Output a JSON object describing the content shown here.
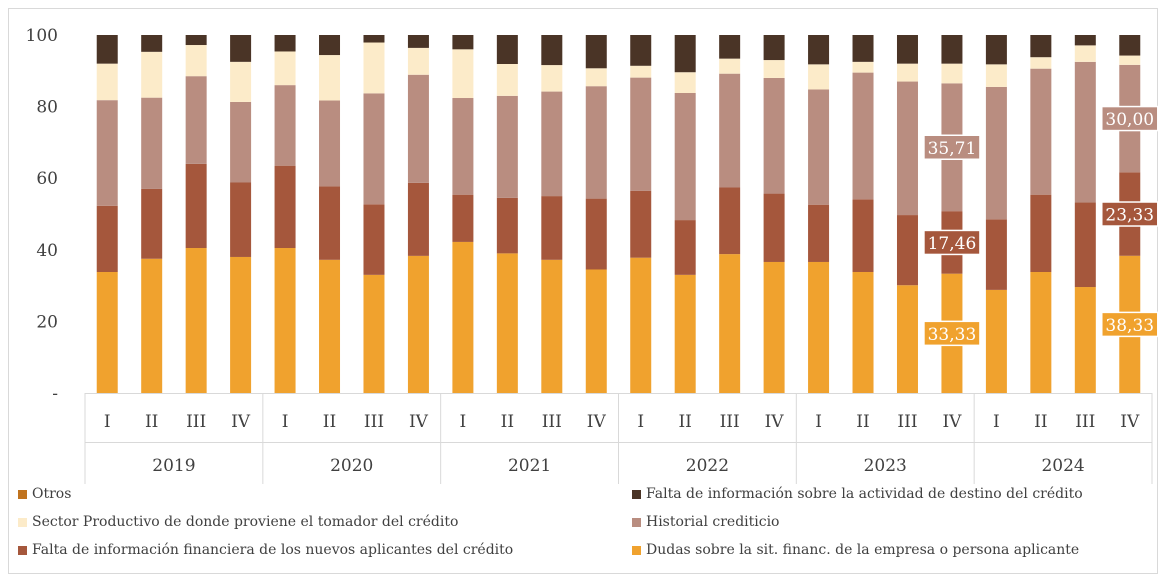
{
  "chart_data": {
    "type": "bar",
    "stacked": true,
    "ylim": [
      0,
      100
    ],
    "y_ticks": [
      "-",
      "20",
      "40",
      "60",
      "80",
      "100"
    ],
    "quarters": [
      "I",
      "II",
      "III",
      "IV",
      "I",
      "II",
      "III",
      "IV",
      "I",
      "II",
      "III",
      "IV",
      "I",
      "II",
      "III",
      "IV",
      "I",
      "II",
      "III",
      "IV",
      "I",
      "II",
      "III",
      "IV"
    ],
    "years": [
      "2019",
      "2020",
      "2021",
      "2022",
      "2023",
      "2024"
    ],
    "series": [
      {
        "name": "Dudas sobre la sit. financ. de la empresa o persona aplicante",
        "color": "#f0a22e",
        "values": [
          33.8,
          37.5,
          40.5,
          38.0,
          40.5,
          37.2,
          33.0,
          38.3,
          42.2,
          39.0,
          37.2,
          34.5,
          37.8,
          33.0,
          38.8,
          36.6,
          36.6,
          33.8,
          30.1,
          33.33,
          28.8,
          33.8,
          29.6,
          38.33
        ]
      },
      {
        "name": "Falta de información financiera de los nuevos aplicantes del crédito",
        "color": "#a5573c",
        "values": [
          18.5,
          19.5,
          23.5,
          20.8,
          23.0,
          20.5,
          19.7,
          20.4,
          13.2,
          15.5,
          17.8,
          19.8,
          18.7,
          15.3,
          18.6,
          19.1,
          16.0,
          20.3,
          19.6,
          17.46,
          19.7,
          21.6,
          23.6,
          23.33
        ]
      },
      {
        "name": "Historial crediticio",
        "color": "#b98d80",
        "values": [
          29.5,
          25.5,
          24.5,
          22.5,
          22.5,
          24.0,
          31.0,
          30.2,
          27.0,
          28.5,
          29.2,
          31.4,
          31.6,
          35.5,
          31.8,
          32.3,
          32.2,
          35.4,
          37.3,
          35.71,
          37.0,
          35.2,
          39.3,
          30.0
        ]
      },
      {
        "name": "Sector Productivo de donde proviene el tomador del crédito",
        "color": "#fcebc9",
        "values": [
          10.2,
          12.8,
          8.7,
          11.2,
          9.4,
          12.7,
          14.2,
          7.5,
          13.6,
          8.9,
          7.4,
          5.0,
          3.3,
          5.8,
          4.2,
          5.0,
          7.0,
          3.0,
          5.0,
          5.5,
          6.3,
          3.2,
          4.6,
          2.6
        ]
      },
      {
        "name": "Falta de información sobre la actividad de destino del crédito",
        "color": "#4a3426",
        "values": [
          8.0,
          4.7,
          2.8,
          7.5,
          4.6,
          5.6,
          2.1,
          3.6,
          4.0,
          8.1,
          8.4,
          9.3,
          8.6,
          10.4,
          6.6,
          7.0,
          8.2,
          7.5,
          8.0,
          8.0,
          8.2,
          6.2,
          2.9,
          5.74
        ]
      },
      {
        "name": "Otros",
        "color": "#c0731e",
        "values": [
          0,
          0,
          0,
          0,
          0,
          0,
          0,
          0,
          0,
          0,
          0,
          0,
          0,
          0,
          0,
          0,
          0,
          0,
          0,
          0,
          0,
          0,
          0,
          0
        ]
      }
    ],
    "data_labels": [
      {
        "bar": 19,
        "series": 0,
        "text": "33,33"
      },
      {
        "bar": 19,
        "series": 1,
        "text": "17,46"
      },
      {
        "bar": 19,
        "series": 2,
        "text": "35,71"
      },
      {
        "bar": 23,
        "series": 0,
        "text": "38,33"
      },
      {
        "bar": 23,
        "series": 1,
        "text": "23,33"
      },
      {
        "bar": 23,
        "series": 2,
        "text": "30,00"
      }
    ],
    "legend_order": [
      5,
      4,
      3,
      2,
      1,
      0
    ],
    "grid": false,
    "legend_position": "bottom"
  }
}
